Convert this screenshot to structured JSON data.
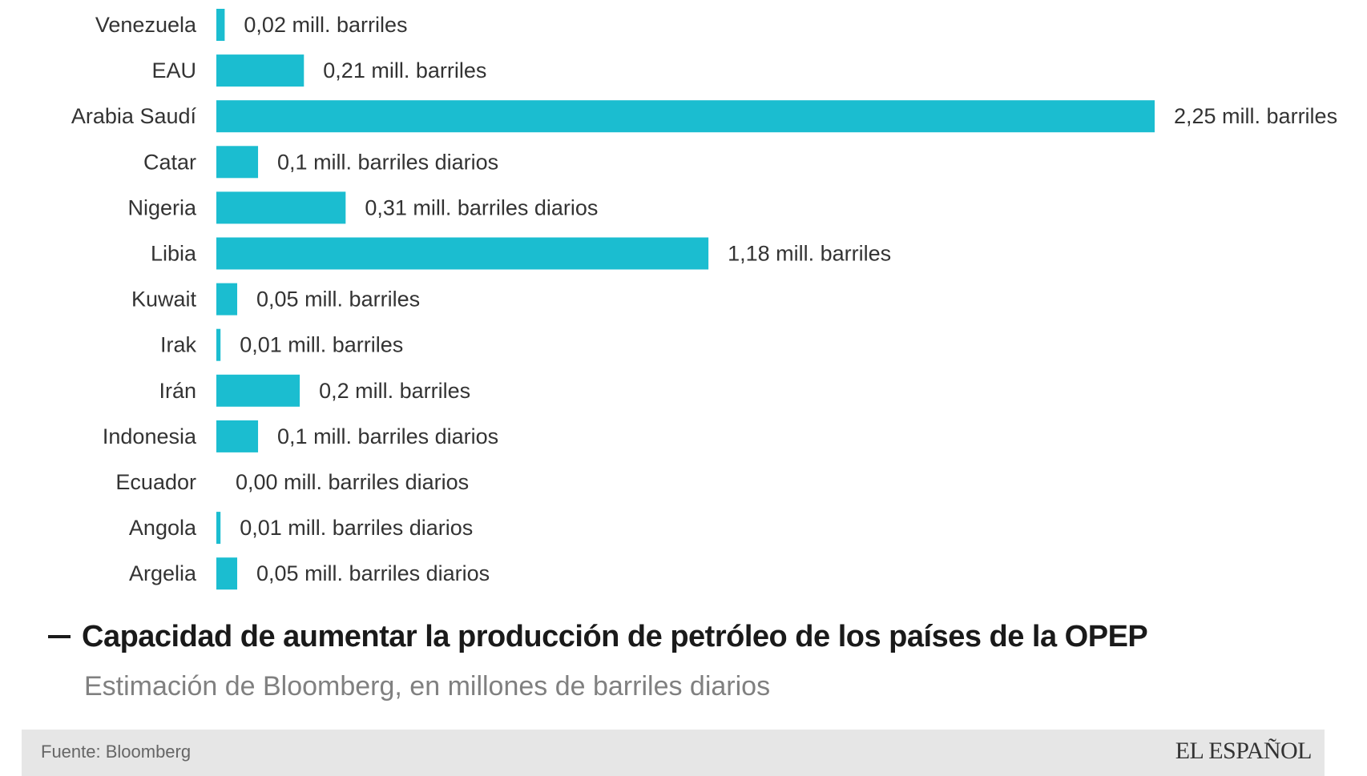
{
  "chart_data": {
    "type": "bar",
    "orientation": "horizontal",
    "title": "Capacidad de aumentar la producción de petróleo de los países de la OPEP",
    "subtitle": "Estimación de Bloomberg, en millones de barriles diarios",
    "categories": [
      "Venezuela",
      "EAU",
      "Arabia Saudí",
      "Catar",
      "Nigeria",
      "Libia",
      "Kuwait",
      "Irak",
      "Irán",
      "Indonesia",
      "Ecuador",
      "Angola",
      "Argelia"
    ],
    "values": [
      0.02,
      0.21,
      2.25,
      0.1,
      0.31,
      1.18,
      0.05,
      0.01,
      0.2,
      0.1,
      0.0,
      0.01,
      0.05
    ],
    "value_labels": [
      "0,02 mill. barriles",
      "0,21 mill. barriles",
      "2,25 mill. barriles",
      "0,1 mill. barriles diarios",
      "0,31 mill. barriles diarios",
      "1,18 mill. barriles",
      "0,05 mill. barriles",
      "0,01 mill. barriles",
      "0,2 mill. barriles",
      "0,1 mill. barriles diarios",
      "0,00 mill. barriles diarios",
      "0,01 mill. barriles diarios",
      "0,05 mill. barriles diarios"
    ],
    "xlim": [
      0,
      2.25
    ],
    "grid": false,
    "bar_color": "#1bbdd0"
  },
  "footer": {
    "source": "Fuente: Bloomberg",
    "logo": "EL ESPAÑOL"
  },
  "colors": {
    "bar": "#1bbdd0",
    "title": "#1a1a1a",
    "subtitle": "#808080",
    "footer_bg": "#e6e6e6"
  }
}
